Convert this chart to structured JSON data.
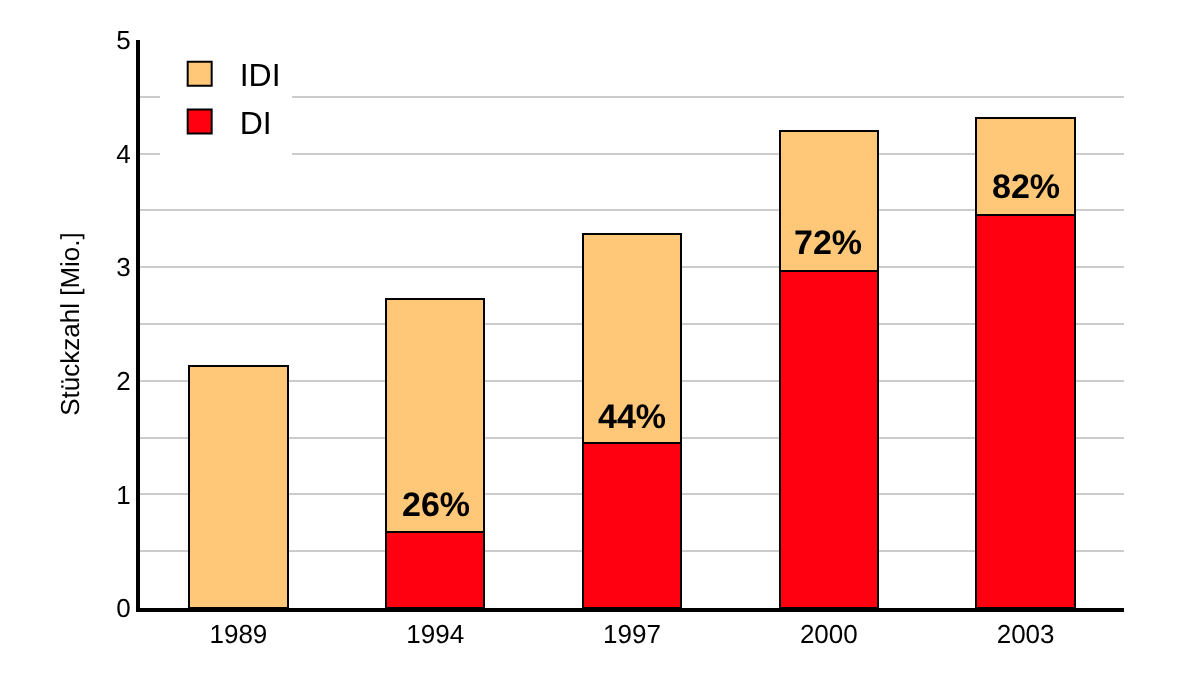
{
  "chart_data": {
    "type": "bar",
    "stacked": true,
    "ylabel": "Stückzahl [Mio.]",
    "categories": [
      "1989",
      "1994",
      "1997",
      "2000",
      "2003"
    ],
    "series": [
      {
        "name": "DI",
        "color": "#ff0011",
        "values": [
          null,
          0.67,
          1.45,
          2.97,
          3.46
        ]
      },
      {
        "name": "IDI",
        "color": "#ffc878",
        "values": [
          2.13,
          2.05,
          1.84,
          1.23,
          0.85
        ]
      }
    ],
    "ylim": [
      0,
      5
    ],
    "yticks": [
      0,
      {
        "value": 0.5,
        "label": null
      },
      1,
      {
        "value": 1.5,
        "label": null
      },
      2,
      {
        "value": 2.5,
        "label": null
      },
      3,
      {
        "value": 3.5,
        "label": null
      },
      4,
      {
        "value": 4.5,
        "label": null
      },
      5
    ],
    "annotations": [
      {
        "text": "26%",
        "x": "1994",
        "y": 0.67
      },
      {
        "text": "44%",
        "x": "1997",
        "y": 1.45
      },
      {
        "text": "72%",
        "x": "2000",
        "y": 2.97
      },
      {
        "text": "82%",
        "x": "2003",
        "y": 3.46
      }
    ],
    "grid": "y",
    "legend": "top left"
  }
}
